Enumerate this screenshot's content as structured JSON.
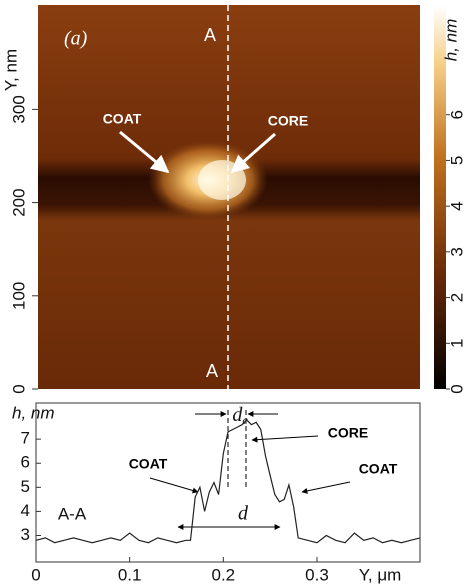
{
  "chart_data": [
    {
      "type": "image",
      "ylabel": "Y, nm",
      "ylim": [
        0,
        412
      ],
      "yticks": [
        0,
        100,
        200,
        300
      ],
      "panel": "(a)",
      "section_top": "A",
      "section_bottom": "A",
      "coat": "COAT",
      "core": "CORE",
      "colorbar": {
        "label": "h, nm",
        "lim": [
          0,
          8.4
        ],
        "ticks": [
          0,
          1,
          2,
          3,
          4,
          5,
          6
        ]
      }
    },
    {
      "type": "line",
      "ylabel": "h, nm",
      "xlabel": "Y, μm",
      "section": "A-A",
      "dc": {
        "text": "d",
        "subscript": "c"
      },
      "d": "d",
      "core": "CORE",
      "coat_left": "COAT",
      "coat_right": "COAT",
      "xlim": [
        0,
        0.41
      ],
      "ylim": [
        1.9,
        8.5
      ],
      "xticks": [
        0,
        0.1,
        0.2,
        0.3
      ],
      "yticks": [
        3,
        4,
        5,
        6,
        7
      ],
      "color": "#222",
      "x": [
        0,
        0.01,
        0.02,
        0.03,
        0.04,
        0.05,
        0.06,
        0.07,
        0.08,
        0.09,
        0.1,
        0.11,
        0.12,
        0.13,
        0.14,
        0.15,
        0.16,
        0.165,
        0.17,
        0.175,
        0.18,
        0.185,
        0.19,
        0.195,
        0.2,
        0.205,
        0.21,
        0.215,
        0.22,
        0.225,
        0.23,
        0.235,
        0.24,
        0.245,
        0.25,
        0.255,
        0.26,
        0.265,
        0.27,
        0.275,
        0.28,
        0.29,
        0.3,
        0.31,
        0.32,
        0.33,
        0.34,
        0.35,
        0.36,
        0.37,
        0.38,
        0.39,
        0.4,
        0.41
      ],
      "values": [
        2.8,
        2.9,
        2.7,
        2.8,
        2.9,
        2.8,
        2.7,
        2.8,
        2.9,
        2.8,
        3.1,
        2.8,
        2.7,
        2.9,
        2.8,
        2.7,
        2.8,
        2.8,
        4.6,
        5.0,
        4.0,
        4.8,
        5.2,
        4.7,
        6.4,
        7.3,
        7.4,
        7.5,
        7.6,
        7.8,
        7.6,
        7.7,
        7.4,
        6.3,
        5.5,
        4.7,
        4.4,
        4.5,
        5.1,
        4.2,
        2.9,
        2.8,
        2.7,
        3.0,
        2.8,
        2.7,
        3.1,
        2.8,
        2.9,
        2.7,
        2.8,
        2.7,
        2.8,
        2.9
      ]
    }
  ]
}
